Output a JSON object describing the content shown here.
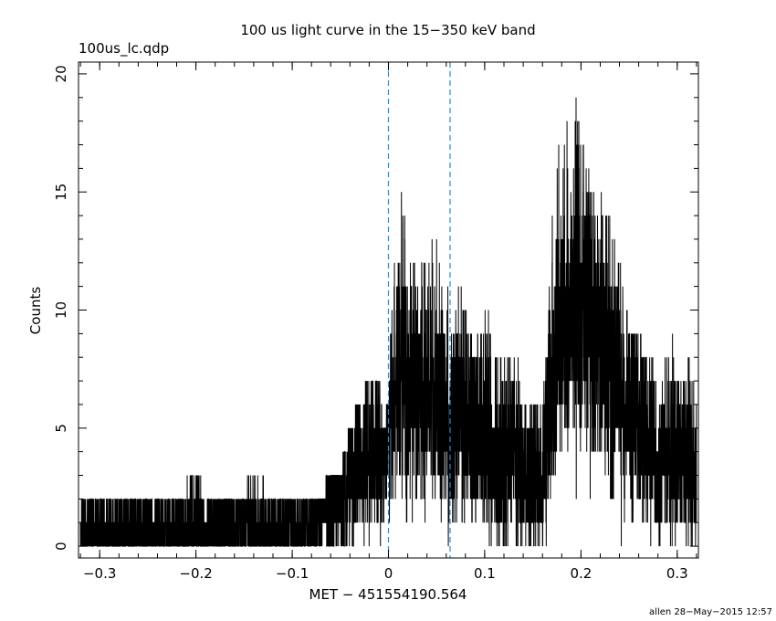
{
  "chart_data": {
    "type": "line",
    "title": "100 us light curve in the 15−350 keV band",
    "file_label": "100us_lc.qdp",
    "xlabel": "MET − 451554190.564",
    "ylabel": "Counts",
    "footer": "allen 28−May−2015 12:57",
    "xlim": [
      -0.322,
      0.322
    ],
    "ylim": [
      -0.5,
      20.5
    ],
    "x_ticks": [
      -0.3,
      -0.2,
      -0.1,
      0,
      0.1,
      0.2,
      0.3
    ],
    "x_tick_labels": [
      "−0.3",
      "−0.2",
      "−0.1",
      "0",
      "0.1",
      "0.2",
      "0.3"
    ],
    "y_ticks": [
      0,
      5,
      10,
      15,
      20
    ],
    "y_tick_labels": [
      "0",
      "5",
      "10",
      "15",
      "20"
    ],
    "bin_width": 0.0001,
    "vertical_markers": [
      0.0,
      0.064
    ],
    "marker_color": "#1e90d6",
    "series": [
      {
        "x": [
          -0.32,
          -0.3,
          -0.28,
          -0.26,
          -0.24,
          -0.22,
          -0.2,
          -0.18,
          -0.16,
          -0.14,
          -0.12,
          -0.1,
          -0.08,
          -0.07,
          -0.06,
          -0.05,
          -0.04,
          -0.03,
          -0.02,
          -0.01,
          -0.005,
          0.0,
          0.005,
          0.01,
          0.015,
          0.02,
          0.03,
          0.04,
          0.05,
          0.06,
          0.064,
          0.07,
          0.08,
          0.09,
          0.1,
          0.11,
          0.12,
          0.13,
          0.14,
          0.15,
          0.16,
          0.17,
          0.18,
          0.19,
          0.2,
          0.21,
          0.22,
          0.23,
          0.24,
          0.25,
          0.26,
          0.27,
          0.28,
          0.29,
          0.3,
          0.31,
          0.32
        ],
        "mean": [
          0.8,
          0.8,
          0.8,
          0.8,
          0.9,
          0.9,
          0.9,
          0.9,
          0.9,
          0.9,
          0.9,
          0.9,
          0.9,
          1.6,
          1.9,
          2.2,
          2.8,
          3.5,
          4.0,
          4.2,
          4.3,
          5.0,
          6.5,
          7.2,
          7.6,
          7.0,
          6.7,
          6.5,
          6.3,
          6.0,
          4.8,
          6.0,
          5.5,
          5.0,
          5.2,
          4.0,
          3.5,
          3.8,
          3.0,
          2.8,
          2.8,
          7.0,
          10.5,
          10.0,
          10.3,
          10.0,
          9.2,
          8.0,
          7.0,
          6.0,
          5.5,
          5.0,
          3.5,
          4.0,
          4.0,
          3.5,
          3.0
        ],
        "peak": [
          2,
          2,
          2,
          2,
          2,
          2,
          3,
          2,
          2,
          3,
          2,
          2,
          2,
          2,
          3,
          3,
          5,
          6,
          7,
          7,
          5,
          6,
          13,
          17,
          14,
          13,
          11,
          13,
          13,
          13,
          9,
          12,
          10,
          8,
          10,
          9,
          8,
          9,
          6,
          6,
          6,
          14,
          20,
          19,
          18,
          17,
          15,
          14,
          12,
          9,
          9,
          8,
          7,
          8,
          9,
          8,
          6
        ]
      }
    ]
  }
}
